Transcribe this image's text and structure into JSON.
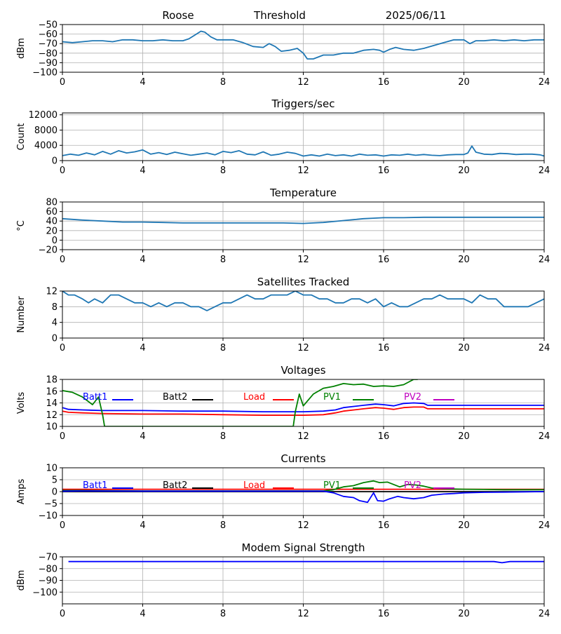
{
  "header": {
    "station": "Roose",
    "mode": "Threshold",
    "date": "2025/06/11"
  },
  "colors": {
    "default": "#1f77b4",
    "batt1": "#0000ff",
    "batt2": "#000000",
    "load": "#ff0000",
    "pv1": "#008000",
    "pv2": "#bf00bf",
    "grid": "#b0b0b0"
  },
  "chart_data": [
    {
      "id": "threshold",
      "type": "line",
      "title": "",
      "ylabel": "dBm",
      "xlim": [
        0,
        24
      ],
      "x_ticks": [
        0,
        4,
        8,
        12,
        16,
        20,
        24
      ],
      "ylim": [
        -100,
        -50
      ],
      "y_ticks": [
        -100,
        -90,
        -80,
        -70,
        -60,
        -50
      ],
      "grid": true,
      "series": [
        {
          "color": "default",
          "x": [
            0,
            0.5,
            1,
            1.5,
            2,
            2.5,
            3,
            3.5,
            4,
            4.5,
            5,
            5.5,
            6,
            6.3,
            6.6,
            6.9,
            7.1,
            7.4,
            7.7,
            8,
            8.5,
            9,
            9.5,
            10,
            10.3,
            10.6,
            10.9,
            11.3,
            11.7,
            12,
            12.2,
            12.5,
            13,
            13.5,
            14,
            14.5,
            15,
            15.5,
            15.8,
            16,
            16.3,
            16.6,
            17,
            17.5,
            18,
            18.5,
            19,
            19.5,
            20,
            20.3,
            20.6,
            21,
            21.5,
            22,
            22.5,
            23,
            23.5,
            24
          ],
          "y": [
            -68,
            -69,
            -68,
            -67,
            -67,
            -68,
            -66,
            -66,
            -67,
            -67,
            -66,
            -67,
            -67,
            -65,
            -61,
            -57,
            -58,
            -63,
            -66,
            -66,
            -66,
            -69,
            -73,
            -74,
            -70,
            -73,
            -78,
            -77,
            -75,
            -80,
            -86,
            -86,
            -82,
            -82,
            -80,
            -80,
            -77,
            -76,
            -77,
            -79,
            -76,
            -74,
            -76,
            -77,
            -75,
            -72,
            -69,
            -66,
            -66,
            -70,
            -67,
            -67,
            -66,
            -67,
            -66,
            -67,
            -66,
            -66
          ]
        }
      ]
    },
    {
      "id": "triggers",
      "type": "line",
      "title": "Triggers/sec",
      "ylabel": "Count",
      "xlim": [
        0,
        24
      ],
      "x_ticks": [
        0,
        4,
        8,
        12,
        16,
        20,
        24
      ],
      "ylim": [
        0,
        12500
      ],
      "y_ticks": [
        0,
        4000,
        8000,
        12000
      ],
      "grid": true,
      "series": [
        {
          "color": "default",
          "x": [
            0,
            0.4,
            0.8,
            1.2,
            1.6,
            2,
            2.4,
            2.8,
            3.2,
            3.6,
            4,
            4.4,
            4.8,
            5.2,
            5.6,
            6,
            6.4,
            6.8,
            7.2,
            7.6,
            8,
            8.4,
            8.8,
            9.2,
            9.6,
            10,
            10.4,
            10.8,
            11.2,
            11.6,
            12,
            12.4,
            12.8,
            13.2,
            13.6,
            14,
            14.4,
            14.8,
            15.2,
            15.6,
            16,
            16.4,
            16.8,
            17.2,
            17.6,
            18,
            18.4,
            18.8,
            19.2,
            19.6,
            20,
            20.2,
            20.4,
            20.6,
            21,
            21.4,
            21.8,
            22.2,
            22.6,
            23,
            23.4,
            23.8,
            24
          ],
          "y": [
            1300,
            1700,
            1400,
            2000,
            1500,
            2400,
            1700,
            2600,
            2000,
            2300,
            2800,
            1700,
            2100,
            1600,
            2200,
            1800,
            1400,
            1700,
            2000,
            1500,
            2400,
            2100,
            2600,
            1700,
            1500,
            2300,
            1400,
            1700,
            2200,
            1900,
            1200,
            1500,
            1200,
            1700,
            1300,
            1500,
            1200,
            1700,
            1400,
            1500,
            1200,
            1500,
            1400,
            1700,
            1400,
            1600,
            1400,
            1300,
            1500,
            1600,
            1600,
            2000,
            3800,
            2200,
            1700,
            1600,
            1900,
            1800,
            1600,
            1700,
            1700,
            1500,
            1200
          ]
        }
      ]
    },
    {
      "id": "temperature",
      "type": "line",
      "title": "Temperature",
      "ylabel": "°C",
      "xlim": [
        0,
        24
      ],
      "x_ticks": [
        0,
        4,
        8,
        12,
        16,
        20,
        24
      ],
      "ylim": [
        -20,
        80
      ],
      "y_ticks": [
        -20,
        0,
        20,
        40,
        60,
        80
      ],
      "grid": true,
      "series": [
        {
          "color": "default",
          "x": [
            0,
            1,
            2,
            3,
            4,
            5,
            6,
            7,
            8,
            9,
            10,
            11,
            12,
            12.5,
            13,
            13.5,
            14,
            14.5,
            15,
            15.5,
            16,
            17,
            18,
            19,
            20,
            21,
            22,
            23,
            24
          ],
          "y": [
            45,
            42,
            40,
            38,
            38,
            37,
            36,
            36,
            36,
            36,
            36,
            36,
            35,
            36,
            37,
            39,
            41,
            43,
            45,
            46,
            47,
            47,
            48,
            48,
            48,
            48,
            48,
            48,
            48
          ]
        }
      ]
    },
    {
      "id": "satellites",
      "type": "line",
      "title": "Satellites Tracked",
      "ylabel": "Number",
      "xlim": [
        0,
        24
      ],
      "x_ticks": [
        0,
        4,
        8,
        12,
        16,
        20,
        24
      ],
      "ylim": [
        0,
        12
      ],
      "y_ticks": [
        0,
        4,
        8,
        12
      ],
      "grid": true,
      "series": [
        {
          "color": "default",
          "x": [
            0,
            0.3,
            0.6,
            1,
            1.3,
            1.6,
            2,
            2.4,
            2.8,
            3.2,
            3.6,
            4,
            4.4,
            4.8,
            5.2,
            5.6,
            6,
            6.4,
            6.8,
            7.2,
            7.6,
            8,
            8.4,
            8.8,
            9.2,
            9.6,
            10,
            10.4,
            10.8,
            11.2,
            11.6,
            12,
            12.4,
            12.8,
            13.2,
            13.6,
            14,
            14.4,
            14.8,
            15.2,
            15.6,
            16,
            16.4,
            16.8,
            17.2,
            17.6,
            18,
            18.4,
            18.8,
            19.2,
            19.6,
            20,
            20.4,
            20.8,
            21.2,
            21.6,
            22,
            22.4,
            22.8,
            23.2,
            23.6,
            24
          ],
          "y": [
            12,
            11,
            11,
            10,
            9,
            10,
            9,
            11,
            11,
            10,
            9,
            9,
            8,
            9,
            8,
            9,
            9,
            8,
            8,
            7,
            8,
            9,
            9,
            10,
            11,
            10,
            10,
            11,
            11,
            11,
            12,
            11,
            11,
            10,
            10,
            9,
            9,
            10,
            10,
            9,
            10,
            8,
            9,
            8,
            8,
            9,
            10,
            10,
            11,
            10,
            10,
            10,
            9,
            11,
            10,
            10,
            8,
            8,
            8,
            8,
            9,
            10
          ]
        }
      ]
    },
    {
      "id": "voltages",
      "type": "line",
      "title": "Voltages",
      "ylabel": "Volts",
      "xlim": [
        0,
        24
      ],
      "x_ticks": [
        0,
        4,
        8,
        12,
        16,
        20,
        24
      ],
      "ylim": [
        10,
        18
      ],
      "y_ticks": [
        10,
        12,
        14,
        16,
        18
      ],
      "grid": true,
      "legend": [
        "Batt1",
        "Batt2",
        "Load",
        "PV1",
        "PV2"
      ],
      "series": [
        {
          "name": "Batt1",
          "color": "batt1",
          "x": [
            0,
            0.3,
            1,
            2,
            4,
            6,
            8,
            10,
            12,
            13,
            13.6,
            14,
            15,
            15.6,
            16,
            16.5,
            17,
            17.5,
            18,
            18.2,
            20,
            22,
            24
          ],
          "y": [
            13.2,
            12.9,
            12.8,
            12.7,
            12.7,
            12.6,
            12.6,
            12.5,
            12.5,
            12.6,
            12.8,
            13.2,
            13.6,
            13.8,
            13.7,
            13.5,
            13.9,
            14.0,
            13.9,
            13.6,
            13.6,
            13.6,
            13.6
          ]
        },
        {
          "name": "Load",
          "color": "load",
          "x": [
            0,
            0.3,
            1,
            2,
            4,
            6,
            8,
            10,
            12,
            13,
            13.6,
            14,
            15,
            15.6,
            16,
            16.5,
            17,
            17.5,
            18,
            18.2,
            20,
            22,
            24
          ],
          "y": [
            12.6,
            12.4,
            12.3,
            12.2,
            12.1,
            12.1,
            12.0,
            11.9,
            11.9,
            12.0,
            12.3,
            12.6,
            13.0,
            13.2,
            13.1,
            12.9,
            13.2,
            13.3,
            13.3,
            13.0,
            13.0,
            13.0,
            13.0
          ]
        },
        {
          "name": "PV1",
          "color": "pv1",
          "x": [
            0,
            0.5,
            1,
            1.5,
            1.8,
            2,
            2.1,
            11.5,
            11.6,
            11.8,
            12,
            12.5,
            13,
            13.5,
            14,
            14.5,
            15,
            15.5,
            16,
            16.5,
            17,
            17.5,
            17.7
          ],
          "y": [
            16.1,
            15.8,
            15.0,
            13.7,
            15.0,
            12.0,
            10.0,
            10.0,
            12.5,
            15.5,
            13.5,
            15.5,
            16.5,
            16.8,
            17.3,
            17.1,
            17.2,
            16.8,
            16.9,
            16.8,
            17.1,
            18.0,
            18.0
          ]
        }
      ]
    },
    {
      "id": "currents",
      "type": "line",
      "title": "Currents",
      "ylabel": "Amps",
      "xlim": [
        0,
        24
      ],
      "x_ticks": [
        0,
        4,
        8,
        12,
        16,
        20,
        24
      ],
      "ylim": [
        -10,
        10
      ],
      "y_ticks": [
        -10,
        -5,
        0,
        5,
        10
      ],
      "grid": true,
      "legend": [
        "Batt1",
        "Batt2",
        "Load",
        "PV1",
        "PV2"
      ],
      "series": [
        {
          "name": "Load",
          "color": "load",
          "x": [
            0,
            4,
            8,
            12,
            16,
            20,
            24
          ],
          "y": [
            1.0,
            1.0,
            1.0,
            1.0,
            1.0,
            1.0,
            1.0
          ]
        },
        {
          "name": "Batt2",
          "color": "batt2",
          "x": [
            0,
            4,
            8,
            12,
            16,
            20,
            24
          ],
          "y": [
            0,
            0,
            0,
            0,
            0,
            0,
            0
          ]
        },
        {
          "name": "PV1",
          "color": "pv1",
          "x": [
            0,
            1,
            4,
            8,
            12,
            13,
            13.5,
            14,
            14.5,
            15,
            15.5,
            15.8,
            16.2,
            16.5,
            16.8,
            17.2,
            17.6,
            18,
            18.4,
            19,
            20,
            21,
            22,
            23,
            24
          ],
          "y": [
            0.5,
            0.5,
            0.3,
            0.3,
            0.3,
            0.3,
            0.8,
            2.0,
            2.5,
            3.8,
            4.5,
            3.8,
            4.0,
            3.0,
            2.0,
            3.0,
            2.8,
            2.3,
            1.5,
            1.2,
            1.0,
            0.9,
            0.8,
            0.8,
            0.8
          ]
        },
        {
          "name": "Batt1",
          "color": "batt1",
          "x": [
            0,
            1,
            4,
            8,
            12,
            13,
            13.5,
            14,
            14.5,
            14.8,
            15.2,
            15.5,
            15.7,
            16,
            16.3,
            16.7,
            17,
            17.5,
            18,
            18.4,
            19,
            19.5,
            20,
            21,
            22,
            23,
            24
          ],
          "y": [
            0.2,
            0.3,
            0.2,
            0.2,
            0.2,
            0.2,
            -0.5,
            -2.0,
            -2.5,
            -3.8,
            -4.5,
            -0.5,
            -3.8,
            -4.0,
            -3.0,
            -2.0,
            -2.5,
            -3.0,
            -2.5,
            -1.5,
            -1.0,
            -0.8,
            -0.5,
            -0.3,
            -0.2,
            -0.1,
            0
          ]
        }
      ]
    },
    {
      "id": "modem",
      "type": "line",
      "title": "Modem Signal Strength",
      "ylabel": "dBm",
      "xlim": [
        0,
        24
      ],
      "x_ticks": [
        0,
        4,
        8,
        12,
        16,
        20,
        24
      ],
      "ylim": [
        -110,
        -70
      ],
      "y_ticks": [
        -100,
        -90,
        -80,
        -70
      ],
      "grid": true,
      "series": [
        {
          "color": "batt1",
          "x": [
            0.3,
            4,
            8,
            12,
            16,
            20,
            21.5,
            21.9,
            22.3,
            24
          ],
          "y": [
            -74,
            -74,
            -74,
            -74,
            -74,
            -74,
            -74,
            -75,
            -74,
            -74
          ]
        }
      ]
    }
  ]
}
